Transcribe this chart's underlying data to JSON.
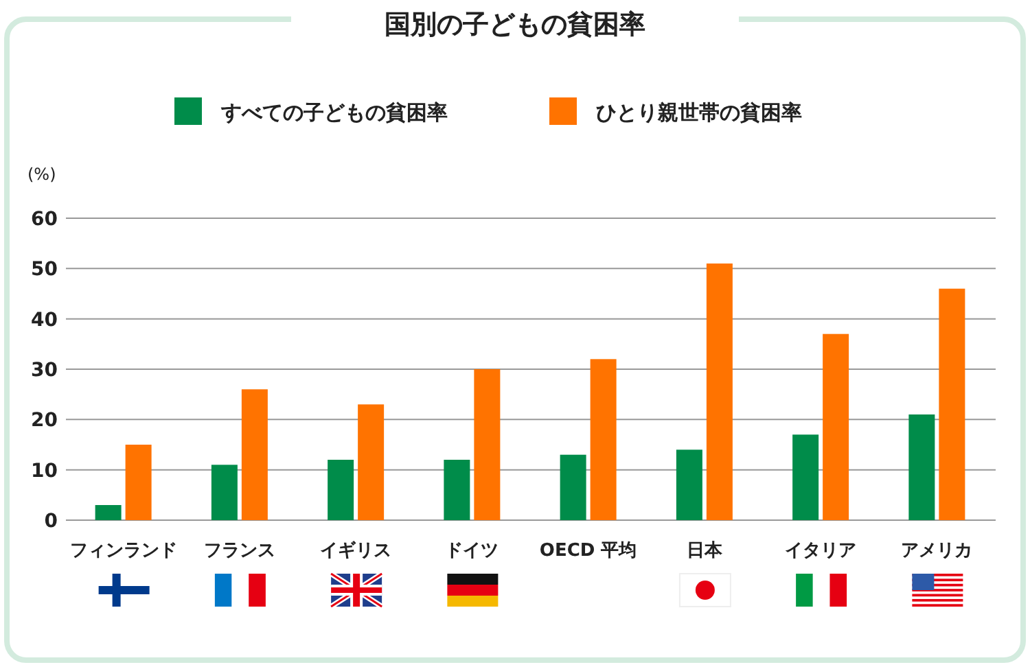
{
  "chart_data": {
    "type": "bar",
    "title": "国別の子どもの貧困率",
    "ylabel": "(%)",
    "categories": [
      "フィンランド",
      "フランス",
      "イギリス",
      "ドイツ",
      "OECD 平均",
      "日本",
      "イタリア",
      "アメリカ"
    ],
    "series": [
      {
        "name": "すべての子どもの貧困率",
        "color": "#008c4a",
        "values": [
          3,
          11,
          12,
          12,
          13,
          14,
          17,
          21
        ]
      },
      {
        "name": "ひとり親世帯の貧困率",
        "color": "#ff7300",
        "values": [
          15,
          26,
          23,
          30,
          32,
          51,
          37,
          46
        ]
      }
    ],
    "ylim": [
      0,
      60
    ],
    "yticks": [
      0,
      10,
      20,
      30,
      40,
      50,
      60
    ],
    "grid": "y",
    "legend": "top"
  }
}
